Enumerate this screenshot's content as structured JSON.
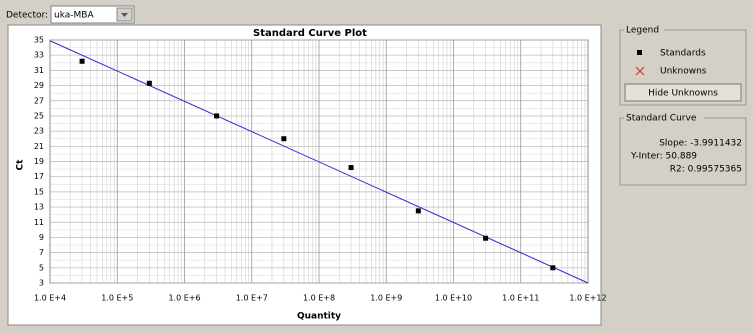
{
  "toolbar": {
    "detector_label": "Detector:",
    "detector_value": "uka-MBA"
  },
  "legend_panel": {
    "title": "Legend",
    "unknowns": "Unknowns",
    "button": "Hide Unknowns"
  },
  "standard_curve": {
    "title": "Standard Curve",
    "slope": "Slope: -3.9911432",
    "intercept": "Y-Inter: 50.889",
    "r2": "R2: 0.99575365"
  },
  "chart_data": {
    "type": "scatter",
    "title": "Standard Curve Plot",
    "x_label": "Quantity",
    "y_label": "Ct",
    "xscale": "log",
    "grid": true,
    "xlim": [
      10000,
      1000000000000
    ],
    "ylim": [
      3,
      35
    ],
    "xticks": [
      {
        "value": 10000,
        "label": "1.0 E+4"
      },
      {
        "value": 100000,
        "label": "1.0 E+5"
      },
      {
        "value": 1000000,
        "label": "1.0 E+6"
      },
      {
        "value": 10000000,
        "label": "1.0 E+7"
      },
      {
        "value": 100000000,
        "label": "1.0 E+8"
      },
      {
        "value": 1000000000,
        "label": "1.0 E+9"
      },
      {
        "value": 10000000000,
        "label": "1.0 E+10"
      },
      {
        "value": 100000000000,
        "label": "1.0 E+11"
      },
      {
        "value": 1000000000000,
        "label": "1.0 E+12"
      }
    ],
    "yticks": [
      3,
      5,
      7,
      9,
      11,
      13,
      15,
      17,
      19,
      21,
      23,
      25,
      27,
      29,
      31,
      33,
      35
    ],
    "series": [
      {
        "name": "Standards",
        "color": "#000000",
        "x": [
          30000,
          300000,
          3000000,
          30000000,
          300000000,
          3000000000,
          30000000000,
          300000000000
        ],
        "values": [
          32.2,
          29.3,
          25.0,
          22.0,
          18.2,
          12.5,
          8.9,
          5.0
        ]
      }
    ],
    "fit_line": {
      "color": "#2b2bd0",
      "x": [
        10000,
        1000000000000
      ],
      "values": [
        34.9,
        3.0
      ]
    }
  }
}
